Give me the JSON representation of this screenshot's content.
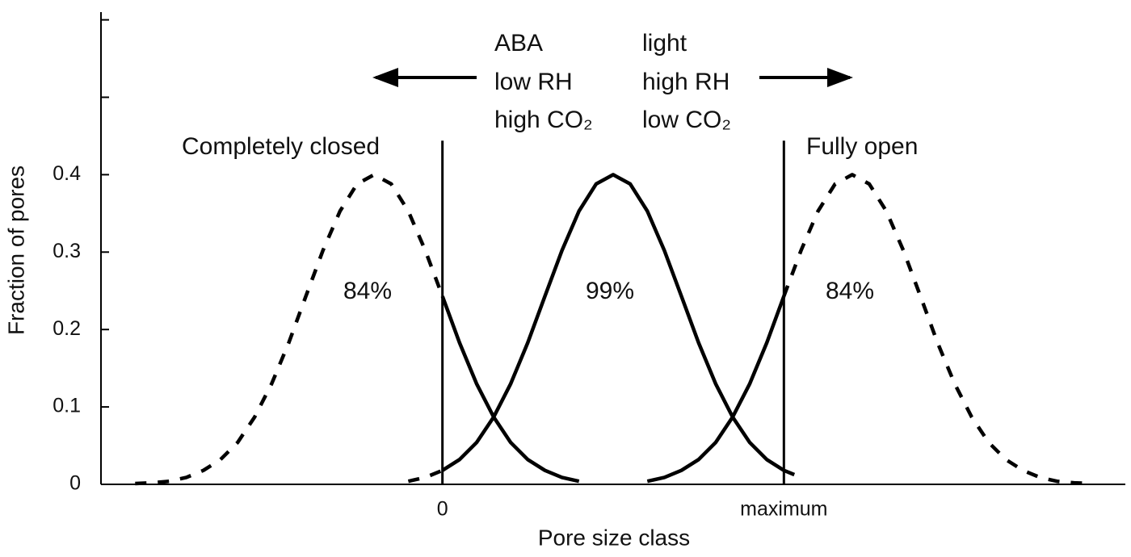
{
  "chart_data": {
    "type": "line",
    "x_label": "Pore size class",
    "y_label": "Fraction of pores",
    "xlim": [
      -1,
      2
    ],
    "xticks": [
      0,
      {
        "value": 1,
        "label": "maximum"
      }
    ],
    "ylim": [
      0,
      0.61
    ],
    "yticks": [
      0,
      0.1,
      0.2,
      0.3,
      0.4
    ],
    "minor_yticks": [
      0.5,
      0.6
    ],
    "vlines": [
      {
        "x": 0,
        "top": 0.444
      },
      {
        "x": 1,
        "top": 0.444
      }
    ],
    "series": [
      {
        "color": "#000000",
        "dashed": true,
        "x": [
          -0.9,
          -0.85,
          -0.8,
          -0.75,
          -0.7,
          -0.65,
          -0.6,
          -0.55,
          -0.5,
          -0.45,
          -0.4,
          -0.35,
          -0.3,
          -0.25,
          -0.2,
          -0.15,
          -0.1,
          -0.05,
          0
        ],
        "values": [
          0.001,
          0.002,
          0.004,
          0.009,
          0.018,
          0.032,
          0.054,
          0.087,
          0.13,
          0.183,
          0.243,
          0.302,
          0.353,
          0.388,
          0.4,
          0.388,
          0.353,
          0.302,
          0.243
        ]
      },
      {
        "color": "#000000",
        "dashed": false,
        "x": [
          0,
          0.05,
          0.1,
          0.15,
          0.2,
          0.25,
          0.3,
          0.35,
          0.4
        ],
        "values": [
          0.243,
          0.183,
          0.13,
          0.087,
          0.054,
          0.032,
          0.018,
          0.009,
          0.004
        ]
      },
      {
        "color": "#000000",
        "dashed": true,
        "x": [
          -0.1,
          -0.05,
          0
        ],
        "values": [
          0.004,
          0.009,
          0.018
        ]
      },
      {
        "color": "#000000",
        "dashed": false,
        "x": [
          0,
          0.05,
          0.1,
          0.15,
          0.2,
          0.25,
          0.3,
          0.35,
          0.4,
          0.45,
          0.5,
          0.55,
          0.6,
          0.65,
          0.7,
          0.75,
          0.8,
          0.85,
          0.9,
          0.95,
          1
        ],
        "values": [
          0.018,
          0.032,
          0.054,
          0.087,
          0.13,
          0.183,
          0.243,
          0.302,
          0.353,
          0.388,
          0.4,
          0.388,
          0.353,
          0.302,
          0.243,
          0.183,
          0.13,
          0.087,
          0.054,
          0.032,
          0.018
        ]
      },
      {
        "color": "#000000",
        "dashed": true,
        "x": [
          1,
          1.05
        ],
        "values": [
          0.018,
          0.009
        ]
      },
      {
        "color": "#000000",
        "dashed": false,
        "x": [
          0.6,
          0.65,
          0.7,
          0.75,
          0.8,
          0.85,
          0.9,
          0.95,
          1
        ],
        "values": [
          0.004,
          0.009,
          0.018,
          0.032,
          0.054,
          0.087,
          0.13,
          0.183,
          0.243
        ]
      },
      {
        "color": "#000000",
        "dashed": true,
        "x": [
          1,
          1.05,
          1.1,
          1.15,
          1.2,
          1.25,
          1.3,
          1.35,
          1.4,
          1.45,
          1.5,
          1.55,
          1.6,
          1.65,
          1.7,
          1.75,
          1.8,
          1.85,
          1.9
        ],
        "values": [
          0.243,
          0.302,
          0.353,
          0.388,
          0.4,
          0.388,
          0.353,
          0.302,
          0.243,
          0.183,
          0.13,
          0.087,
          0.054,
          0.032,
          0.018,
          0.009,
          0.004,
          0.002,
          0.001
        ]
      }
    ],
    "annotations": [
      "ABA",
      "low RH",
      "high CO₂",
      "light",
      "high RH",
      "low CO₂",
      "Completely closed",
      "Fully open",
      "84%",
      "99%",
      "84%"
    ]
  }
}
